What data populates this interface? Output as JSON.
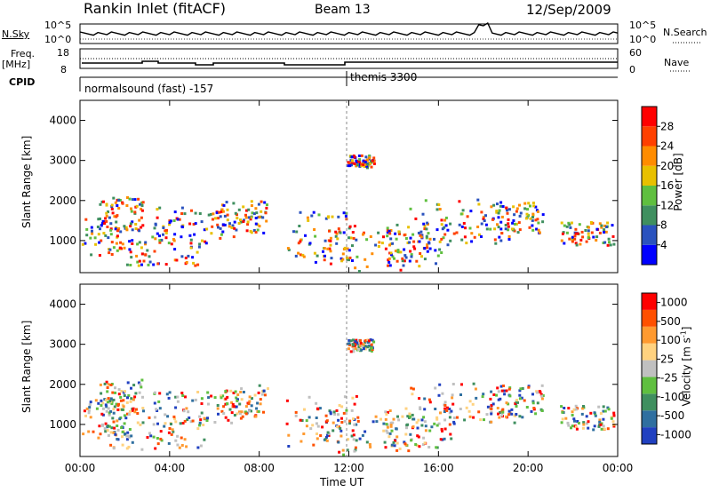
{
  "header": {
    "station": "Rankin Inlet (fitACF)",
    "beam": "Beam 13",
    "date": "12/Sep/2009"
  },
  "strips": {
    "nsky_label": "N.Sky",
    "nsky_ticks": [
      "10^5",
      "10^0"
    ],
    "nsearch_label": "N.Search",
    "freq_label_1": "Freq.",
    "freq_label_2": "[MHz]",
    "freq_ticks": [
      "18",
      "8"
    ],
    "nave_ticks": [
      "60",
      "0"
    ],
    "nave_label": "Nave",
    "cpid_label": "CPID",
    "cpid_1": "normalsound (fast) -157",
    "cpid_2": "themis 3300"
  },
  "chart_data": [
    {
      "type": "heatmap",
      "ylabel": "Slant Range [km]",
      "ylim": [
        200,
        4500
      ],
      "yticks": [
        1000,
        2000,
        3000,
        4000
      ],
      "xlabel": "Time UT",
      "xticks": [
        "00:00",
        "04:00",
        "08:00",
        "12:00",
        "16:00",
        "20:00",
        "00:00"
      ],
      "colorbar": {
        "label": "Power [dB]",
        "ticks": [
          "4",
          "8",
          "12",
          "16",
          "20",
          "24",
          "28"
        ],
        "colors": [
          "#0000ff",
          "#2a52be",
          "#3f8f5f",
          "#5fbf3f",
          "#e8c000",
          "#ff8c00",
          "#ff4000",
          "#ff0000"
        ]
      }
    },
    {
      "type": "heatmap",
      "ylabel": "Slant Range [km]",
      "ylim": [
        200,
        4500
      ],
      "yticks": [
        1000,
        2000,
        3000,
        4000
      ],
      "xlabel": "Time UT",
      "xticks": [
        "00:00",
        "04:00",
        "08:00",
        "12:00",
        "16:00",
        "20:00",
        "00:00"
      ],
      "colorbar": {
        "label": "Velocity [m s",
        "label_sup": "-1",
        "label_end": "]",
        "ticks": [
          "1000",
          "500",
          "100",
          "25",
          "-25",
          "-100",
          "-500",
          "-1000"
        ],
        "colors": [
          "#2040c0",
          "#2f6fa0",
          "#3f8f5f",
          "#5fbf3f",
          "#c0c0c0",
          "#ffd27f",
          "#ff9a30",
          "#ff5000",
          "#ff0000"
        ]
      }
    }
  ]
}
